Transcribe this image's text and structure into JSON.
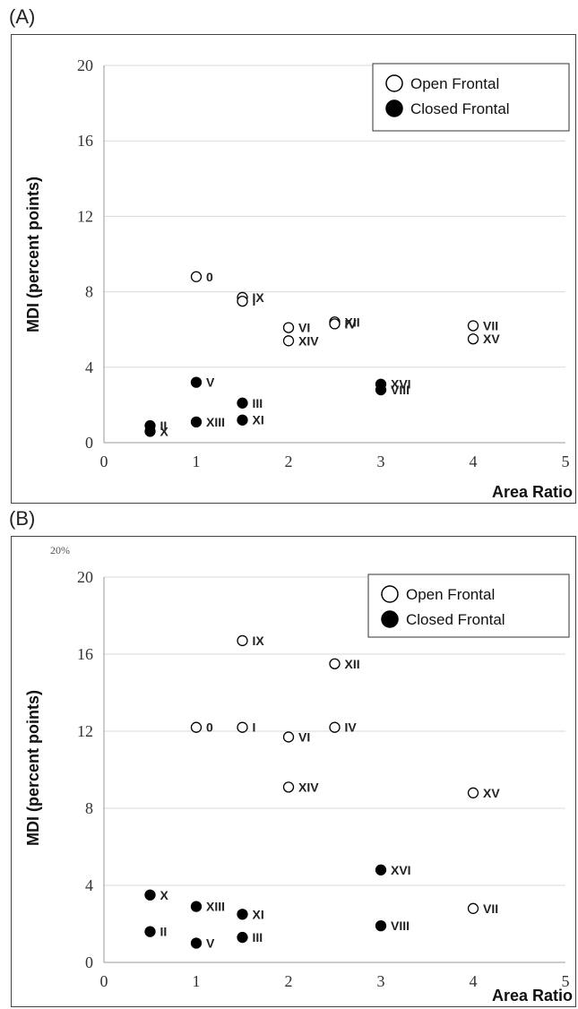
{
  "panels": [
    {
      "panel_label": "(A)",
      "cropped_tick_text": ""
    },
    {
      "panel_label": "(B)",
      "cropped_tick_text": "20%"
    }
  ],
  "chart_data": [
    {
      "type": "scatter",
      "title": "",
      "xlabel": "Area Ratio",
      "ylabel": "MDI (percent points)",
      "xlim": [
        0,
        5
      ],
      "ylim": [
        0,
        20
      ],
      "x_ticks": [
        0,
        1,
        2,
        3,
        4,
        5
      ],
      "y_ticks": [
        0,
        4,
        8,
        12,
        16,
        20
      ],
      "grid": "horizontal",
      "legend_position": "top-right",
      "series": [
        {
          "name": "Open Frontal",
          "marker": "open-circle",
          "points": [
            {
              "label": "0",
              "x": 1.0,
              "y": 8.8
            },
            {
              "label": "IX",
              "x": 1.5,
              "y": 7.7
            },
            {
              "label": "I",
              "x": 1.5,
              "y": 7.5
            },
            {
              "label": "VI",
              "x": 2.0,
              "y": 6.1
            },
            {
              "label": "XIV",
              "x": 2.0,
              "y": 5.4
            },
            {
              "label": "XII",
              "x": 2.5,
              "y": 6.4
            },
            {
              "label": "IV",
              "x": 2.5,
              "y": 6.3
            },
            {
              "label": "VII",
              "x": 4.0,
              "y": 6.2
            },
            {
              "label": "XV",
              "x": 4.0,
              "y": 5.5
            }
          ]
        },
        {
          "name": "Closed Frontal",
          "marker": "filled-circle",
          "points": [
            {
              "label": "V",
              "x": 1.0,
              "y": 3.2
            },
            {
              "label": "III",
              "x": 1.5,
              "y": 2.1
            },
            {
              "label": "XI",
              "x": 1.5,
              "y": 1.2
            },
            {
              "label": "XIII",
              "x": 1.0,
              "y": 1.1
            },
            {
              "label": "II",
              "x": 0.5,
              "y": 0.9
            },
            {
              "label": "X",
              "x": 0.5,
              "y": 0.6
            },
            {
              "label": "XVI",
              "x": 3.0,
              "y": 3.1
            },
            {
              "label": "VIII",
              "x": 3.0,
              "y": 2.8
            }
          ]
        }
      ]
    },
    {
      "type": "scatter",
      "title": "",
      "xlabel": "Area Ratio",
      "ylabel": "MDI (percent points)",
      "xlim": [
        0,
        5
      ],
      "ylim": [
        0,
        20
      ],
      "x_ticks": [
        0,
        1,
        2,
        3,
        4,
        5
      ],
      "y_ticks": [
        0,
        4,
        8,
        12,
        16,
        20
      ],
      "grid": "horizontal",
      "legend_position": "top-right",
      "series": [
        {
          "name": "Open Frontal",
          "marker": "open-circle",
          "points": [
            {
              "label": "IX",
              "x": 1.5,
              "y": 16.7
            },
            {
              "label": "XII",
              "x": 2.5,
              "y": 15.5
            },
            {
              "label": "0",
              "x": 1.0,
              "y": 12.2
            },
            {
              "label": "I",
              "x": 1.5,
              "y": 12.2
            },
            {
              "label": "VI",
              "x": 2.0,
              "y": 11.7
            },
            {
              "label": "IV",
              "x": 2.5,
              "y": 12.2
            },
            {
              "label": "XIV",
              "x": 2.0,
              "y": 9.1
            },
            {
              "label": "XV",
              "x": 4.0,
              "y": 8.8
            },
            {
              "label": "VII",
              "x": 4.0,
              "y": 2.8
            }
          ]
        },
        {
          "name": "Closed Frontal",
          "marker": "filled-circle",
          "points": [
            {
              "label": "XVI",
              "x": 3.0,
              "y": 4.8
            },
            {
              "label": "X",
              "x": 0.5,
              "y": 3.5
            },
            {
              "label": "XIII",
              "x": 1.0,
              "y": 2.9
            },
            {
              "label": "XI",
              "x": 1.5,
              "y": 2.5
            },
            {
              "label": "II",
              "x": 0.5,
              "y": 1.6
            },
            {
              "label": "VIII",
              "x": 3.0,
              "y": 1.9
            },
            {
              "label": "III",
              "x": 1.5,
              "y": 1.3
            },
            {
              "label": "V",
              "x": 1.0,
              "y": 1.0
            }
          ]
        }
      ]
    }
  ]
}
